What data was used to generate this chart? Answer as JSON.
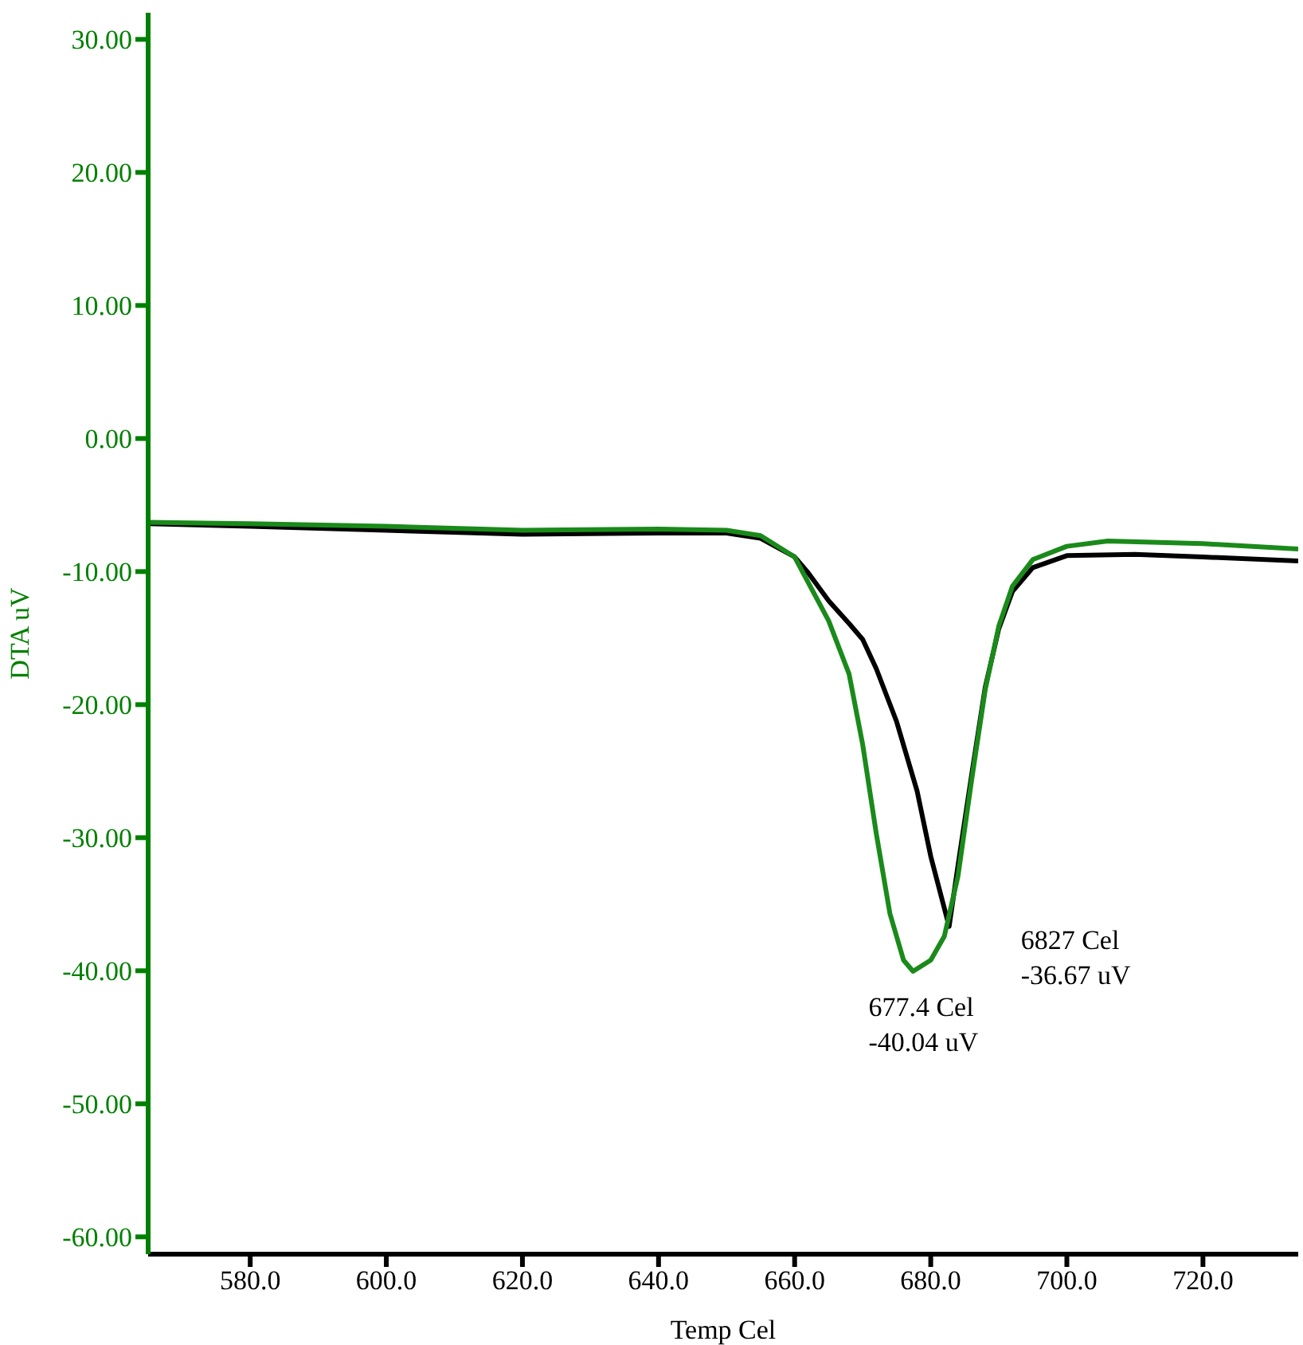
{
  "chart_data": {
    "type": "line",
    "xlabel": "Temp Cel",
    "ylabel": "DTA uV",
    "xlim": [
      565,
      734
    ],
    "ylim": [
      -61.3,
      32
    ],
    "xticks": [
      {
        "value": 580,
        "label": "580.0"
      },
      {
        "value": 600,
        "label": "600.0"
      },
      {
        "value": 620,
        "label": "620.0"
      },
      {
        "value": 640,
        "label": "640.0"
      },
      {
        "value": 660,
        "label": "660.0"
      },
      {
        "value": 680,
        "label": "680.0"
      },
      {
        "value": 700,
        "label": "700.0"
      },
      {
        "value": 720,
        "label": "720.0"
      }
    ],
    "yticks": [
      {
        "value": 30,
        "label": "30.00"
      },
      {
        "value": 20,
        "label": "20.00"
      },
      {
        "value": 10,
        "label": "10.00"
      },
      {
        "value": 0,
        "label": "0.00"
      },
      {
        "value": -10,
        "label": "-10.00"
      },
      {
        "value": -20,
        "label": "-20.00"
      },
      {
        "value": -30,
        "label": "-30.00"
      },
      {
        "value": -40,
        "label": "-40.00"
      },
      {
        "value": -50,
        "label": "-50.00"
      },
      {
        "value": -60,
        "label": "-60.00"
      }
    ],
    "grid": false,
    "legend": false,
    "marker": "none",
    "line_style": "solid",
    "series": [
      {
        "color": "#000000",
        "x": [
          565,
          580,
          600,
          620,
          640,
          650,
          655,
          660,
          662,
          665,
          668,
          670,
          672,
          675,
          678,
          680,
          682.7,
          684,
          686,
          688,
          690,
          692,
          695,
          700,
          710,
          720,
          734
        ],
        "values": [
          -6.4,
          -6.6,
          -6.9,
          -7.2,
          -7.1,
          -7.1,
          -7.5,
          -8.9,
          -10.1,
          -12.2,
          -13.9,
          -15.1,
          -17.3,
          -21.3,
          -26.5,
          -31.4,
          -36.67,
          -32.1,
          -25.3,
          -18.7,
          -14.3,
          -11.5,
          -9.7,
          -8.8,
          -8.7,
          -8.9,
          -9.2
        ]
      },
      {
        "color": "#1a8a1a",
        "x": [
          565,
          580,
          600,
          620,
          640,
          650,
          655,
          660,
          665,
          668,
          670,
          672,
          674,
          676,
          677.4,
          680,
          682,
          684,
          686,
          688,
          690,
          692,
          695,
          700,
          706,
          720,
          734
        ],
        "values": [
          -6.3,
          -6.4,
          -6.6,
          -6.9,
          -6.8,
          -6.9,
          -7.3,
          -8.9,
          -13.7,
          -17.7,
          -23,
          -29.7,
          -35.7,
          -39.2,
          -40.04,
          -39.2,
          -37.4,
          -32.9,
          -25.7,
          -18.9,
          -14.1,
          -11.1,
          -9.1,
          -8.1,
          -7.7,
          -7.9,
          -8.3
        ]
      }
    ],
    "annotations": [
      {
        "text": "677.4 Cel\n-40.04 uV",
        "x": 677.4,
        "y": -40.04
      },
      {
        "text": "6827 Cel\n-36.67 uV",
        "x": 682.7,
        "y": -36.67
      }
    ]
  }
}
